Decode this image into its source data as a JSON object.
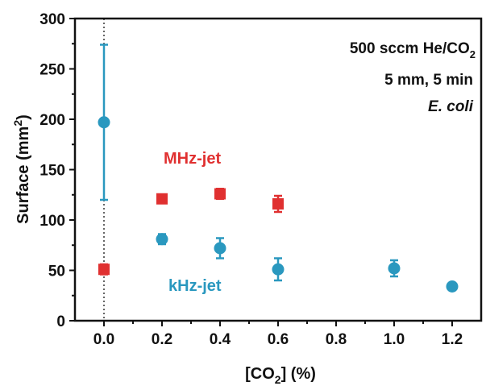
{
  "chart_data": {
    "type": "scatter",
    "xlabel": {
      "main": "[CO",
      "sub": "2",
      "tail": "] (%)"
    },
    "ylabel": {
      "main": "Surface (mm",
      "sup": "2",
      "tail": ")"
    },
    "xlim": [
      -0.1,
      1.3
    ],
    "ylim": [
      0,
      300
    ],
    "xticks": [
      "0.0",
      "0.2",
      "0.4",
      "0.6",
      "0.8",
      "1.0",
      "1.2"
    ],
    "yticks": [
      "0",
      "50",
      "100",
      "150",
      "200",
      "250",
      "300"
    ],
    "grid": false,
    "annotations": {
      "line1": {
        "main": "500 sccm He/CO",
        "sub": "2"
      },
      "line2": "5 mm, 5 min",
      "line3": "E. coli"
    },
    "series": [
      {
        "name": "MHz-jet",
        "color": "#e03030",
        "marker": "square",
        "x": [
          0.0,
          0.2,
          0.4,
          0.6
        ],
        "y": [
          51,
          121,
          126,
          116
        ],
        "err": [
          5,
          4,
          5,
          8
        ]
      },
      {
        "name": "kHz-jet",
        "color": "#2a98bf",
        "marker": "circle",
        "x": [
          0.0,
          0.2,
          0.4,
          0.6,
          1.0,
          1.2
        ],
        "y": [
          197,
          81,
          72,
          51,
          52,
          34
        ],
        "err": [
          77,
          5,
          10,
          11,
          8,
          3
        ]
      }
    ]
  }
}
